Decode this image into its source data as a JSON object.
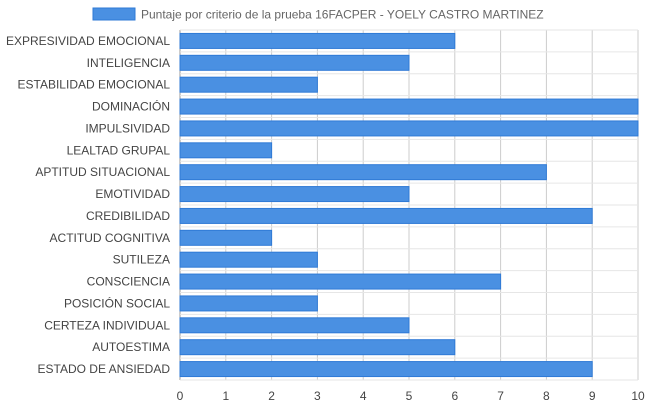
{
  "chart_data": {
    "type": "bar",
    "orientation": "horizontal",
    "title": "",
    "legend": {
      "position": "top",
      "label": "Puntaje por criterio de la prueba 16FACPER - YOELY CASTRO MARTINEZ"
    },
    "categories": [
      "EXPRESIVIDAD EMOCIONAL",
      "INTELIGENCIA",
      "ESTABILIDAD EMOCIONAL",
      "DOMINACIÓN",
      "IMPULSIVIDAD",
      "LEALTAD GRUPAL",
      "APTITUD SITUACIONAL",
      "EMOTIVIDAD",
      "CREDIBILIDAD",
      "ACTITUD COGNITIVA",
      "SUTILEZA",
      "CONSCIENCIA",
      "POSICIÓN SOCIAL",
      "CERTEZA INDIVIDUAL",
      "AUTOESTIMA",
      "ESTADO DE ANSIEDAD"
    ],
    "series": [
      {
        "name": "Puntaje por criterio de la prueba 16FACPER - YOELY CASTRO MARTINEZ",
        "values": [
          6,
          5,
          3,
          10,
          10,
          2,
          8,
          5,
          9,
          2,
          3,
          7,
          3,
          5,
          6,
          9
        ]
      }
    ],
    "xlim": [
      0,
      10
    ],
    "xticks": [
      "0",
      "1",
      "2",
      "3",
      "4",
      "5",
      "6",
      "7",
      "8",
      "9",
      "10"
    ],
    "xlabel": "",
    "ylabel": "",
    "grid": true,
    "colors": {
      "bar_fill": "#4a90e2",
      "bar_stroke": "#2f7ad6",
      "grid": "#e6e6e6",
      "axis": "#999999"
    }
  }
}
